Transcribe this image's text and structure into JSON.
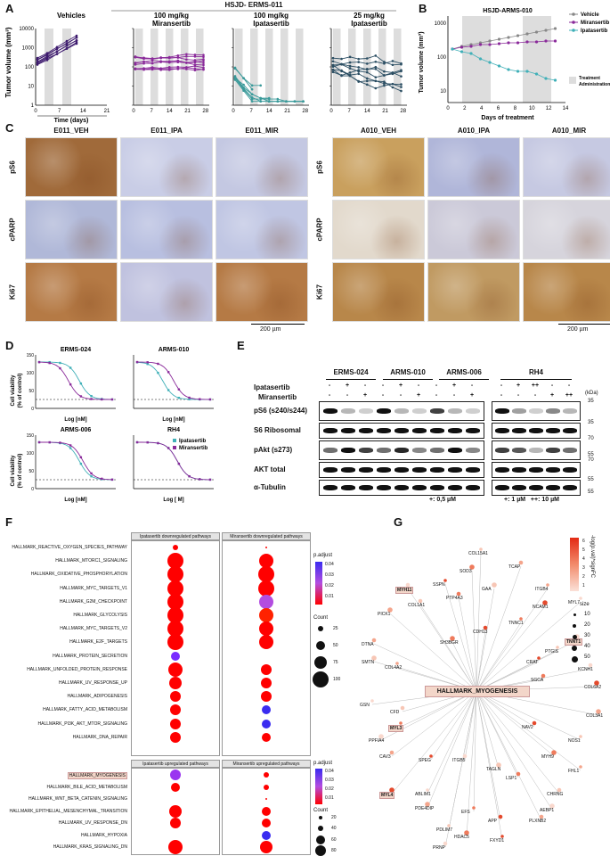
{
  "panels": {
    "A": "A",
    "B": "B",
    "C": "C",
    "D": "D",
    "E": "E",
    "F": "F",
    "G": "G"
  },
  "A": {
    "title": "HSJD- ERMS-011",
    "ylabel": "Tumor volume (mm³)",
    "xlabel": "Time (days)",
    "groups": [
      "Vehicles",
      "100 mg/kg Miransertib",
      "100 mg/kg Ipatasertib",
      "25 mg/kg Ipatasertib"
    ],
    "group_l1": [
      "Vehicles",
      "100 mg/kg",
      "100 mg/kg",
      "25 mg/kg"
    ],
    "group_l2": [
      "",
      "Miransertib",
      "Ipatasertib",
      "Ipatasertib"
    ],
    "yticks": [
      "10000",
      "1000",
      "100",
      "10",
      "1"
    ],
    "xticks_veh": [
      "0",
      "7",
      "14",
      "21"
    ],
    "xticks": [
      "0",
      "7",
      "14",
      "21",
      "28"
    ]
  },
  "B": {
    "title": "HSJD-ARMS-010",
    "ylabel": "Tumor volume (mm³)",
    "xlabel": "Days of treatment",
    "yticks": [
      "1000",
      "100",
      "10"
    ],
    "xticks": [
      "0",
      "2",
      "4",
      "6",
      "8",
      "10",
      "12",
      "14"
    ],
    "legend": [
      "Vehicle",
      "Miransertib",
      "Ipatasertib"
    ],
    "legend_box_l1": "Treatment",
    "legend_box_l2": "Administration"
  },
  "C": {
    "cols_left": [
      "E011_VEH",
      "E011_IPA",
      "E011_MIR"
    ],
    "cols_right": [
      "A010_VEH",
      "A010_IPA",
      "A010_MIR"
    ],
    "rows": [
      "pS6",
      "cPARP",
      "Ki67"
    ],
    "scale": "200 µm"
  },
  "D": {
    "titles": [
      "ERMS-024",
      "ARMS-010",
      "ARMS-006",
      "RH4"
    ],
    "ylabel_l1": "Cell viability",
    "ylabel_l2": "(% of control)",
    "xlabels": [
      "Log [nM]",
      "Log [nM]",
      "Log [nM]",
      "Log [  M]"
    ],
    "yticks": [
      "150",
      "100",
      "50",
      "0"
    ],
    "legend": [
      "Ipatasertib",
      "Miransertib"
    ]
  },
  "E": {
    "cell_lines": [
      "ERMS-024",
      "ARMS-010",
      "ARMS-006",
      "RH4"
    ],
    "treat_labels": [
      "Ipatasertib",
      "Miransertib"
    ],
    "rows": [
      "pS6 (s240/s244)",
      "S6 Ribosomal",
      "pAkt (s273)",
      "AKT total",
      "α-Tubulin"
    ],
    "kda_title": "(kDa)",
    "kda": [
      "35",
      "35",
      "70",
      "55",
      "70",
      "55",
      "55"
    ],
    "lane_ipa_left": [
      "-",
      "+",
      "-",
      "-",
      "+",
      "-",
      "-",
      "+",
      "-"
    ],
    "lane_mir_left": [
      "-",
      "-",
      "+",
      "-",
      "-",
      "+",
      "-",
      "-",
      "+"
    ],
    "lane_ipa_rh4": [
      "-",
      "+",
      "++",
      "-",
      "-"
    ],
    "lane_mir_rh4": [
      "-",
      "-",
      "-",
      "+",
      "++"
    ],
    "foot_left": "+: 0,5 µM",
    "foot_right": "+: 1 µM   ++: 10 µM"
  },
  "F": {
    "header_dl": "Ipatasertib downregulated pathways",
    "header_dr": "Miransertib downregulated pathways",
    "header_ul": "Ipatasertib upregulated pathways",
    "header_ur": "Miransertib upregulated pathways",
    "down_pathways": [
      "HALLMARK_REACTIVE_OXYGEN_SPECIES_PATHWAY",
      "HALLMARK_MTORC1_SIGNALING",
      "HALLMARK_OXIDATIVE_PHOSPHORYLATION",
      "HALLMARK_MYC_TARGETS_V1",
      "HALLMARK_G2M_CHECKPOINT",
      "HALLMARK_GLYCOLYSIS",
      "HALLMARK_MYC_TARGETS_V2",
      "HALLMARK_E2F_TARGETS",
      "HALLMARK_PROTEIN_SECRETION",
      "HALLMARK_UNFOLDED_PROTEIN_RESPONSE",
      "HALLMARK_UV_RESPONSE_UP",
      "HALLMARK_ADIPOGENESIS",
      "HALLMARK_FATTY_ACID_METABOLISM",
      "HALLMARK_PI3K_AKT_MTOR_SIGNALING",
      "HALLMARK_DNA_REPAIR"
    ],
    "up_pathways": [
      "HALLMARK_MYOGENESIS",
      "HALLMARK_BILE_ACID_METABOLISM",
      "HALLMARK_WNT_BETA_CATENIN_SIGNALING",
      "HALLMARK_EPITHELIAL_MESENCHYMAL_TRANSITION",
      "HALLMARK_UV_RESPONSE_DN",
      "HALLMARK_HYPOXIA",
      "HALLMARK_KRAS_SIGNALING_DN"
    ],
    "legend_padj": "p.adjust",
    "padj_ticks_top": [
      "0.04",
      "0.03",
      "0.02",
      "0.01"
    ],
    "padj_ticks_bot": [
      "0.04",
      "0.03",
      "0.02",
      "0.01"
    ],
    "count_title": "Count",
    "count_top": [
      "25",
      "50",
      "75",
      "100"
    ],
    "count_bot": [
      "20",
      "40",
      "60",
      "80"
    ]
  },
  "G": {
    "hub": "HALLMARK_MYOGENESIS",
    "legend_title": "-log(p.val)*signFC",
    "legend_ticks": [
      "6",
      "5",
      "4",
      "3",
      "2",
      "1"
    ],
    "size_title": "size",
    "size_ticks": [
      "10",
      "20",
      "30",
      "40",
      "50"
    ],
    "genes": [
      "COL15A1",
      "TCAP",
      "SOD3",
      "SSPN",
      "MYH11",
      "GAA",
      "ITGB4",
      "PTP4A3",
      "NCAM1",
      "MYL7",
      "COL1A1",
      "PICK1",
      "TNNC1",
      "CDH13",
      "TNNT1",
      "PTGIS",
      "DTNA",
      "SH3BGR",
      "CRAT",
      "KCNH1",
      "SMTN",
      "COL4A2",
      "SGCA",
      "COL6A2",
      "GSN",
      "CFD",
      "COL3A1",
      "MYL3",
      "NAV2",
      "PPFIA4",
      "NOS1",
      "CAV3",
      "MYH9",
      "SPEG",
      "ITGB5",
      "TAGLN",
      "FHL1",
      "LSP1",
      "MYL4",
      "ABLIM1",
      "CHRNG",
      "PDE4DIP",
      "EFS",
      "APP",
      "AEBP1",
      "PDLIM7",
      "PLXNB2",
      "HDAC5",
      "FXYD1",
      "PRNP"
    ]
  }
}
